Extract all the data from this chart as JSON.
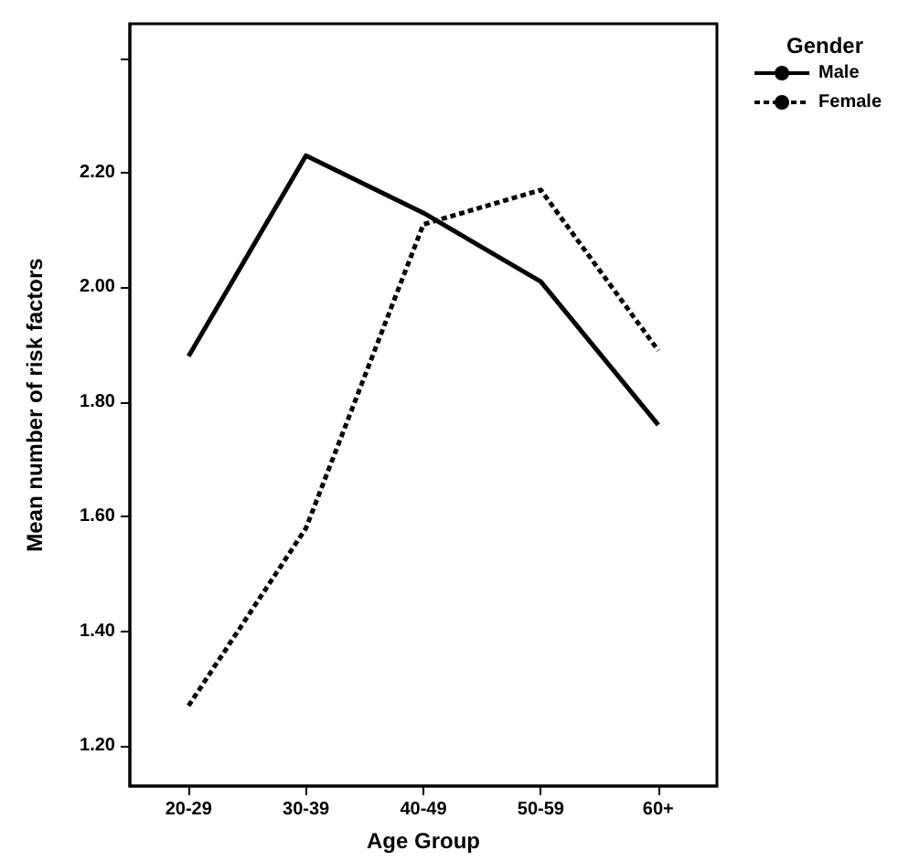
{
  "chart_data": {
    "type": "line",
    "xlabel": "Age Group",
    "ylabel": "Mean number of risk factors",
    "legend_title": "Gender",
    "categories": [
      "20-29",
      "30-39",
      "40-49",
      "50-59",
      "60+"
    ],
    "series": [
      {
        "name": "Male",
        "color": "#000000",
        "line_style": "solid",
        "values": [
          1.88,
          2.23,
          2.13,
          2.01,
          1.76
        ]
      },
      {
        "name": "Female",
        "color": "#000000",
        "line_style": "dotted",
        "values": [
          1.27,
          1.58,
          2.11,
          2.17,
          1.89
        ]
      }
    ],
    "ylim": [
      1.13,
      2.46
    ],
    "yticks": [
      {
        "value": 1.2,
        "label": "1.20"
      },
      {
        "value": 1.4,
        "label": "1.40"
      },
      {
        "value": 1.6,
        "label": "1.60"
      },
      {
        "value": 1.8,
        "label": "1.80"
      },
      {
        "value": 2.0,
        "label": "2.00"
      },
      {
        "value": 2.2,
        "label": "2.20"
      },
      {
        "value": 2.4,
        "label": null
      }
    ],
    "grid": false,
    "legend": "top right",
    "marker": "none"
  }
}
